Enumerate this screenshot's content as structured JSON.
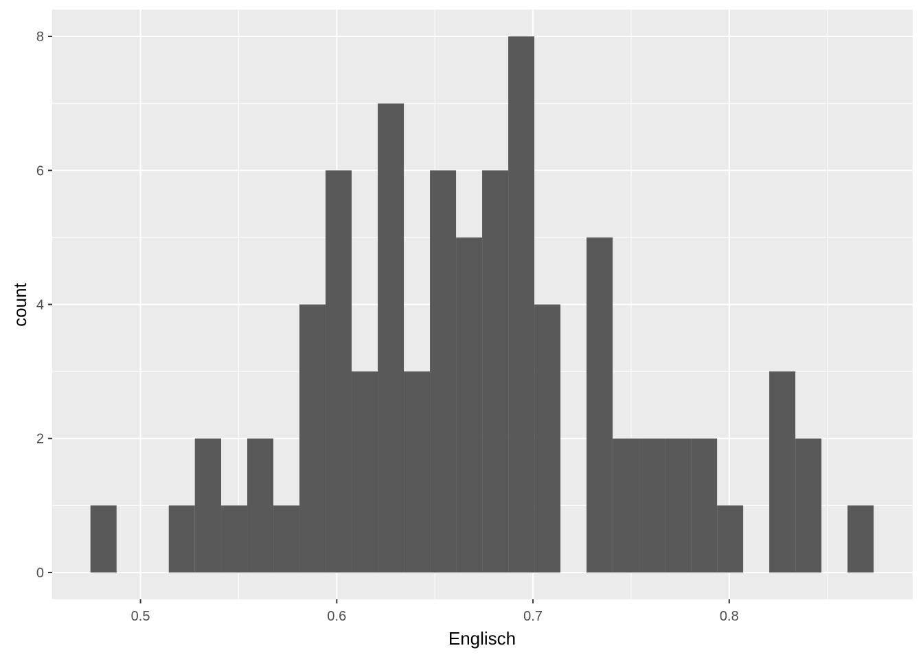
{
  "chart_data": {
    "type": "bar",
    "xlabel": "Englisch",
    "ylabel": "count",
    "xlim": [
      0.455,
      0.8935
    ],
    "ylim": [
      -0.4,
      8.4
    ],
    "x_ticks": [
      0.5,
      0.6,
      0.7,
      0.8
    ],
    "x_tick_labels": [
      "0.5",
      "0.6",
      "0.7",
      "0.8"
    ],
    "y_ticks": [
      0,
      2,
      4,
      6,
      8
    ],
    "y_tick_labels": [
      "0",
      "2",
      "4",
      "6",
      "8"
    ],
    "grid": true,
    "bar_color": "#595959",
    "panel_background": "#ebebeb",
    "grid_color": "#ffffff",
    "bins": [
      {
        "x0": 0.4745,
        "x1": 0.4878,
        "count": 1
      },
      {
        "x0": 0.4878,
        "x1": 0.5011,
        "count": 0
      },
      {
        "x0": 0.5011,
        "x1": 0.5144,
        "count": 0
      },
      {
        "x0": 0.5144,
        "x1": 0.5277,
        "count": 1
      },
      {
        "x0": 0.5277,
        "x1": 0.5411,
        "count": 2
      },
      {
        "x0": 0.5411,
        "x1": 0.5544,
        "count": 1
      },
      {
        "x0": 0.5544,
        "x1": 0.5677,
        "count": 2
      },
      {
        "x0": 0.5677,
        "x1": 0.581,
        "count": 1
      },
      {
        "x0": 0.581,
        "x1": 0.5943,
        "count": 4
      },
      {
        "x0": 0.5943,
        "x1": 0.6076,
        "count": 6
      },
      {
        "x0": 0.6076,
        "x1": 0.6209,
        "count": 3
      },
      {
        "x0": 0.6209,
        "x1": 0.6342,
        "count": 7
      },
      {
        "x0": 0.6342,
        "x1": 0.6475,
        "count": 3
      },
      {
        "x0": 0.6475,
        "x1": 0.6608,
        "count": 6
      },
      {
        "x0": 0.6608,
        "x1": 0.6741,
        "count": 5
      },
      {
        "x0": 0.6741,
        "x1": 0.6874,
        "count": 6
      },
      {
        "x0": 0.6874,
        "x1": 0.7007,
        "count": 8
      },
      {
        "x0": 0.7007,
        "x1": 0.714,
        "count": 4
      },
      {
        "x0": 0.714,
        "x1": 0.7273,
        "count": 0
      },
      {
        "x0": 0.7273,
        "x1": 0.7406,
        "count": 5
      },
      {
        "x0": 0.7406,
        "x1": 0.7539,
        "count": 2
      },
      {
        "x0": 0.7539,
        "x1": 0.7672,
        "count": 2
      },
      {
        "x0": 0.7672,
        "x1": 0.7805,
        "count": 2
      },
      {
        "x0": 0.7805,
        "x1": 0.7938,
        "count": 2
      },
      {
        "x0": 0.7938,
        "x1": 0.8071,
        "count": 1
      },
      {
        "x0": 0.8071,
        "x1": 0.8204,
        "count": 0
      },
      {
        "x0": 0.8204,
        "x1": 0.8337,
        "count": 3
      },
      {
        "x0": 0.8337,
        "x1": 0.847,
        "count": 2
      },
      {
        "x0": 0.847,
        "x1": 0.8603,
        "count": 0
      },
      {
        "x0": 0.8603,
        "x1": 0.8736,
        "count": 1
      }
    ]
  }
}
